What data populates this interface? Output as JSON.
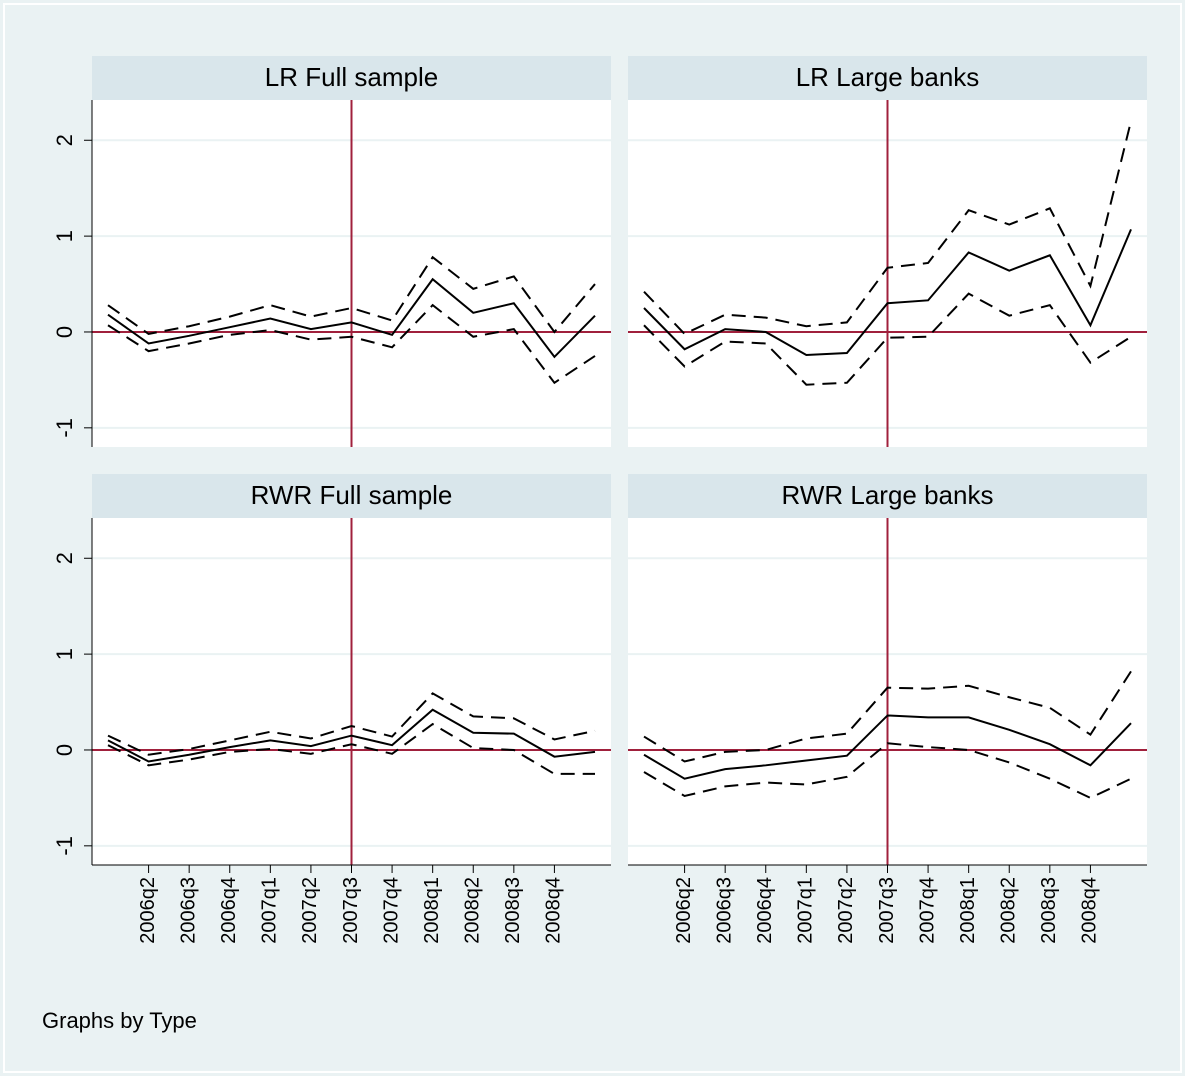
{
  "chart_data": [
    {
      "type": "line",
      "title": "LR Full sample",
      "categories": [
        null,
        "2006q2",
        "2006q3",
        "2006q4",
        "2007q1",
        "2007q2",
        "2007q3",
        "2007q4",
        "2008q1",
        "2008q2",
        "2008q3",
        "2008q4",
        null
      ],
      "series": [
        {
          "color": "#000000",
          "dashed": false,
          "values": [
            0.18,
            -0.12,
            -0.04,
            0.05,
            0.14,
            0.03,
            0.1,
            -0.03,
            0.55,
            0.2,
            0.3,
            -0.26,
            0.17
          ]
        },
        {
          "color": "#000000",
          "dashed": true,
          "values": [
            0.28,
            -0.02,
            0.06,
            0.16,
            0.28,
            0.16,
            0.25,
            0.12,
            0.78,
            0.45,
            0.58,
            0.0,
            0.5
          ]
        },
        {
          "color": "#000000",
          "dashed": true,
          "values": [
            0.07,
            -0.2,
            -0.12,
            -0.03,
            0.02,
            -0.08,
            -0.05,
            -0.16,
            0.28,
            -0.05,
            0.03,
            -0.53,
            -0.25
          ]
        }
      ],
      "ylim": [
        -1.2,
        2.42
      ],
      "yticks": [
        -1,
        0,
        1,
        2
      ],
      "grid": true,
      "xline": "2007q3",
      "yline": 0,
      "refline_color": "#a0203c"
    },
    {
      "type": "line",
      "title": "LR Large banks",
      "categories": [
        null,
        "2006q2",
        "2006q3",
        "2006q4",
        "2007q1",
        "2007q2",
        "2007q3",
        "2007q4",
        "2008q1",
        "2008q2",
        "2008q3",
        "2008q4",
        null
      ],
      "series": [
        {
          "color": "#000000",
          "dashed": false,
          "values": [
            0.25,
            -0.18,
            0.03,
            0.0,
            -0.24,
            -0.22,
            0.3,
            0.33,
            0.83,
            0.64,
            0.8,
            0.07,
            1.07
          ]
        },
        {
          "color": "#000000",
          "dashed": true,
          "values": [
            0.42,
            -0.02,
            0.18,
            0.15,
            0.06,
            0.1,
            0.67,
            0.72,
            1.27,
            1.12,
            1.29,
            0.48,
            2.2
          ]
        },
        {
          "color": "#000000",
          "dashed": true,
          "values": [
            0.07,
            -0.36,
            -0.1,
            -0.12,
            -0.55,
            -0.53,
            -0.06,
            -0.05,
            0.4,
            0.17,
            0.28,
            -0.32,
            -0.05
          ]
        }
      ],
      "ylim": [
        -1.2,
        2.42
      ],
      "yticks": [
        -1,
        0,
        1,
        2
      ],
      "grid": true,
      "xline": "2007q3",
      "yline": 0,
      "refline_color": "#a0203c"
    },
    {
      "type": "line",
      "title": "RWR Full sample",
      "categories": [
        null,
        "2006q2",
        "2006q3",
        "2006q4",
        "2007q1",
        "2007q2",
        "2007q3",
        "2007q4",
        "2008q1",
        "2008q2",
        "2008q3",
        "2008q4",
        null
      ],
      "series": [
        {
          "color": "#000000",
          "dashed": false,
          "values": [
            0.1,
            -0.12,
            -0.05,
            0.03,
            0.1,
            0.04,
            0.15,
            0.05,
            0.42,
            0.18,
            0.17,
            -0.07,
            -0.02
          ]
        },
        {
          "color": "#000000",
          "dashed": true,
          "values": [
            0.15,
            -0.05,
            0.01,
            0.1,
            0.19,
            0.12,
            0.25,
            0.14,
            0.59,
            0.35,
            0.33,
            0.11,
            0.2
          ]
        },
        {
          "color": "#000000",
          "dashed": true,
          "values": [
            0.05,
            -0.16,
            -0.1,
            -0.02,
            0.01,
            -0.04,
            0.06,
            -0.04,
            0.27,
            0.02,
            0.0,
            -0.25,
            -0.25
          ]
        }
      ],
      "ylim": [
        -1.2,
        2.42
      ],
      "yticks": [
        -1,
        0,
        1,
        2
      ],
      "grid": true,
      "xline": "2007q3",
      "yline": 0,
      "refline_color": "#a0203c"
    },
    {
      "type": "line",
      "title": "RWR Large banks",
      "categories": [
        null,
        "2006q2",
        "2006q3",
        "2006q4",
        "2007q1",
        "2007q2",
        "2007q3",
        "2007q4",
        "2008q1",
        "2008q2",
        "2008q3",
        "2008q4",
        null
      ],
      "series": [
        {
          "color": "#000000",
          "dashed": false,
          "values": [
            -0.05,
            -0.3,
            -0.2,
            -0.16,
            -0.11,
            -0.06,
            0.36,
            0.34,
            0.34,
            0.21,
            0.06,
            -0.16,
            0.28
          ]
        },
        {
          "color": "#000000",
          "dashed": true,
          "values": [
            0.14,
            -0.12,
            -0.02,
            0.0,
            0.12,
            0.17,
            0.65,
            0.64,
            0.67,
            0.55,
            0.44,
            0.16,
            0.82
          ]
        },
        {
          "color": "#000000",
          "dashed": true,
          "values": [
            -0.23,
            -0.48,
            -0.38,
            -0.34,
            -0.36,
            -0.28,
            0.07,
            0.03,
            0.0,
            -0.13,
            -0.3,
            -0.5,
            -0.3
          ]
        }
      ],
      "ylim": [
        -1.2,
        2.42
      ],
      "yticks": [
        -1,
        0,
        1,
        2
      ],
      "grid": true,
      "xline": "2007q3",
      "yline": 0,
      "refline_color": "#a0203c"
    }
  ],
  "note": "Graphs by Type"
}
